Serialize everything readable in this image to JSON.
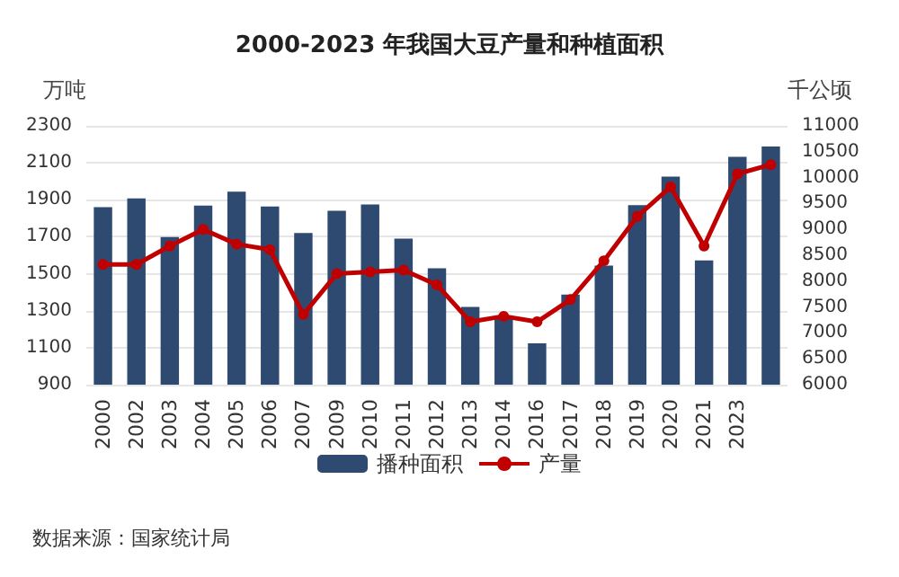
{
  "chart_data": {
    "type": "bar",
    "title": "2000-2023 年我国大豆产量和种植面积",
    "ylabel": "万吨",
    "y2label": "千公顷",
    "categories": [
      "2000",
      "2002",
      "2003",
      "2004",
      "2005",
      "2006",
      "2007",
      "2009",
      "2010",
      "2011",
      "2012",
      "2013",
      "2014",
      "2016",
      "2017",
      "2018",
      "2019",
      "2020",
      "2021",
      "2023",
      null
    ],
    "series": [
      {
        "name": "播种面积",
        "axis": "y2",
        "color": "#2e4a70",
        "values": [
          9430,
          9600,
          8850,
          9460,
          9730,
          9440,
          8930,
          9360,
          9480,
          8820,
          8250,
          7500,
          7300,
          6800,
          7740,
          8300,
          9470,
          10020,
          8400,
          10400,
          10600
        ]
      },
      {
        "name": "产量",
        "type": "line",
        "color": "#c00000",
        "values": [
          1550,
          1550,
          1650,
          1740,
          1660,
          1630,
          1280,
          1500,
          1510,
          1520,
          1440,
          1240,
          1270,
          1240,
          1360,
          1570,
          1810,
          1970,
          1650,
          2040,
          2090
        ]
      }
    ],
    "ylim": [
      900,
      2300
    ],
    "yticks": [
      900,
      1100,
      1300,
      1500,
      1700,
      1900,
      2100,
      2300
    ],
    "y2lim": [
      6000,
      11000
    ],
    "y2ticks": [
      6000,
      6500,
      7000,
      7500,
      8000,
      8500,
      9000,
      9500,
      10000,
      10500,
      11000
    ],
    "grid": "y",
    "legend": "bottom",
    "marker": "circle",
    "line_style": "solid",
    "annotations": [
      "数据来源：国家统计局"
    ]
  }
}
